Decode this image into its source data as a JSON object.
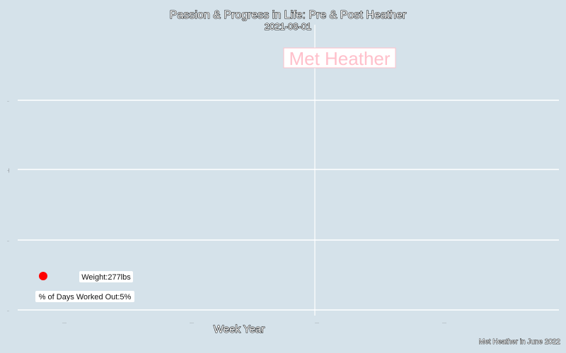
{
  "chart_data": {
    "type": "scatter",
    "title": "Passion & Progress in Life: Pre & Post Heather",
    "subtitle": "2021-08-01",
    "xlabel": "Week Year",
    "ylabel": "",
    "caption": "Met Heather in June 2022",
    "grid": true,
    "annotation": {
      "text": "Met Heather",
      "color": "#ffc0cb"
    },
    "points": [
      {
        "marker_color": "#ff0000",
        "weight_label": "Weight:277lbs",
        "workout_label": "% of Days Worked Out:5%"
      }
    ],
    "colors": {
      "background": "#d5e2ea",
      "gridline": "#ffffff",
      "point": "#ff0000",
      "annotation": "#ffc0cb"
    }
  }
}
